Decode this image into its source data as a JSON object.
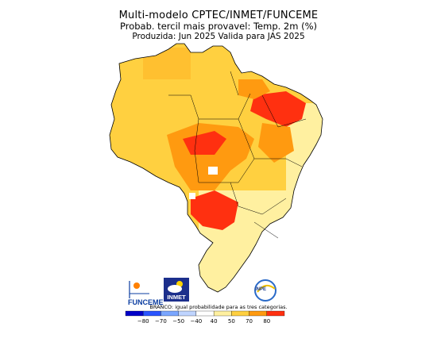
{
  "header": {
    "line1": "Multi-modelo CPTEC/INMET/FUNCEME",
    "line2": "Probab. tercil mais provavel: Temp. 2m (%)",
    "line3": "Produzida: Jun 2025   Valida para JAS 2025"
  },
  "logos": {
    "funceme": "FUNCEME",
    "inmet": "INMET",
    "inpe": "INPE"
  },
  "legend": {
    "note": "BRANCO: igual probabilidade para as tres categorias.",
    "ticks": [
      "−80",
      "−70",
      "−50",
      "−40",
      "40",
      "50",
      "70",
      "80"
    ],
    "colors": [
      "#0000c8",
      "#2a55ff",
      "#7aa6ff",
      "#bfd4ff",
      "#ffffff",
      "#fff0a0",
      "#ffd040",
      "#ff9a10",
      "#ff3010"
    ]
  },
  "colors": {
    "light_yellow": "#fff0a0",
    "yellow": "#ffd040",
    "orange": "#ff9a10",
    "red": "#ff3010",
    "white": "#ffffff",
    "border": "#000000"
  }
}
